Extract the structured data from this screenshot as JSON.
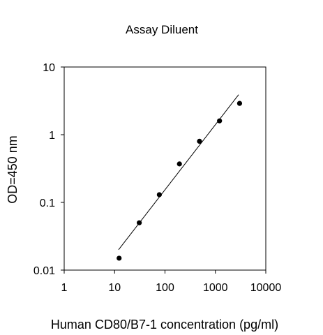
{
  "chart_data": {
    "type": "scatter",
    "title": "Assay Diluent",
    "xlabel": "Human CD80/B7-1 concentration (pg/ml)",
    "ylabel": "OD=450 nm",
    "x_scale": "log",
    "y_scale": "log",
    "xlim": [
      1,
      10000
    ],
    "ylim": [
      0.01,
      10
    ],
    "x_ticks": [
      1,
      10,
      100,
      1000,
      10000
    ],
    "x_tick_labels": [
      "1",
      "10",
      "100",
      "1000",
      "10000"
    ],
    "y_ticks": [
      0.01,
      0.1,
      1,
      10
    ],
    "y_tick_labels": [
      "0.01",
      "0.1",
      "1",
      "10"
    ],
    "grid": false,
    "legend": "none",
    "marker_color": "#000000",
    "line_color": "#000000",
    "points": [
      {
        "x": 12.3,
        "y": 0.015
      },
      {
        "x": 30.9,
        "y": 0.05
      },
      {
        "x": 77.2,
        "y": 0.13
      },
      {
        "x": 193.4,
        "y": 0.37
      },
      {
        "x": 483.6,
        "y": 0.8
      },
      {
        "x": 1208,
        "y": 1.6
      },
      {
        "x": 3020,
        "y": 2.9
      }
    ],
    "fit_line": {
      "x": [
        12.0,
        2890
      ],
      "y": [
        0.02,
        3.9
      ]
    }
  }
}
